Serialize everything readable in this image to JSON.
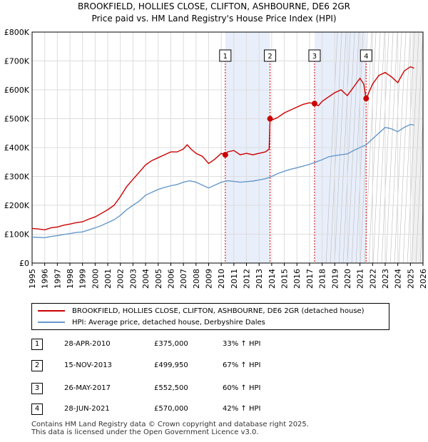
{
  "title_line1": "BROOKFIELD, HOLLIES CLOSE, CLIFTON, ASHBOURNE, DE6 2GR",
  "title_line2": "Price paid vs. HM Land Registry's House Price Index (HPI)",
  "colors": {
    "property": "#cc0000",
    "hpi": "#6699cc",
    "shade": "#e8eefa",
    "grid": "#dddddd"
  },
  "legend": {
    "property": "BROOKFIELD, HOLLIES CLOSE, CLIFTON, ASHBOURNE, DE6 2GR (detached house)",
    "hpi": "HPI: Average price, detached house, Derbyshire Dales"
  },
  "sales": [
    {
      "num": "1",
      "date": "28-APR-2010",
      "price": "£375,000",
      "hpi": "33% ↑ HPI"
    },
    {
      "num": "2",
      "date": "15-NOV-2013",
      "price": "£499,950",
      "hpi": "67% ↑ HPI"
    },
    {
      "num": "3",
      "date": "26-MAY-2017",
      "price": "£552,500",
      "hpi": "60% ↑ HPI"
    },
    {
      "num": "4",
      "date": "28-JUN-2021",
      "price": "£570,000",
      "hpi": "42% ↑ HPI"
    }
  ],
  "footer": {
    "line1": "Contains HM Land Registry data © Crown copyright and database right 2025.",
    "line2": "This data is licensed under the Open Government Licence v3.0."
  },
  "chart_data": {
    "type": "line",
    "xlabel": "",
    "ylabel": "",
    "xlim": [
      1995,
      2026
    ],
    "ylim": [
      0,
      800000
    ],
    "x_ticks": [
      "1995",
      "1996",
      "1997",
      "1998",
      "1999",
      "2000",
      "2001",
      "2002",
      "2003",
      "2004",
      "2005",
      "2006",
      "2007",
      "2008",
      "2009",
      "2010",
      "2011",
      "2012",
      "2013",
      "2014",
      "2015",
      "2016",
      "2017",
      "2018",
      "2019",
      "2020",
      "2021",
      "2022",
      "2023",
      "2024",
      "2025",
      "2026"
    ],
    "y_ticks": [
      "£0",
      "£100K",
      "£200K",
      "£300K",
      "£400K",
      "£500K",
      "£600K",
      "£700K",
      "£800K"
    ],
    "grid": true,
    "legend_position": "below",
    "shaded_periods": [
      [
        2010.32,
        2013.87
      ],
      [
        2017.4,
        2021.49
      ]
    ],
    "forecast_start": 2025.1,
    "sale_points": [
      {
        "label": "1",
        "x": 2010.32,
        "y": 375000
      },
      {
        "label": "2",
        "x": 2013.87,
        "y": 499950
      },
      {
        "label": "3",
        "x": 2017.4,
        "y": 552500
      },
      {
        "label": "4",
        "x": 2021.49,
        "y": 570000
      }
    ],
    "series": [
      {
        "name": "BROOKFIELD, HOLLIES CLOSE, CLIFTON, ASHBOURNE, DE6 2GR (detached house)",
        "color": "#cc0000",
        "points": [
          [
            1995,
            120000
          ],
          [
            1995.5,
            118000
          ],
          [
            1996,
            115000
          ],
          [
            1996.5,
            122000
          ],
          [
            1997,
            125000
          ],
          [
            1997.5,
            131000
          ],
          [
            1998,
            135000
          ],
          [
            1998.5,
            140000
          ],
          [
            1999,
            143000
          ],
          [
            1999.5,
            152000
          ],
          [
            2000,
            160000
          ],
          [
            2000.5,
            172000
          ],
          [
            2001,
            185000
          ],
          [
            2001.5,
            200000
          ],
          [
            2002,
            230000
          ],
          [
            2002.5,
            265000
          ],
          [
            2003,
            290000
          ],
          [
            2003.5,
            315000
          ],
          [
            2004,
            340000
          ],
          [
            2004.5,
            355000
          ],
          [
            2005,
            365000
          ],
          [
            2005.5,
            375000
          ],
          [
            2006,
            385000
          ],
          [
            2006.5,
            385000
          ],
          [
            2007,
            395000
          ],
          [
            2007.3,
            410000
          ],
          [
            2007.6,
            395000
          ],
          [
            2008,
            380000
          ],
          [
            2008.5,
            370000
          ],
          [
            2009,
            345000
          ],
          [
            2009.5,
            360000
          ],
          [
            2010,
            380000
          ],
          [
            2010.32,
            375000
          ],
          [
            2010.5,
            385000
          ],
          [
            2011,
            390000
          ],
          [
            2011.5,
            375000
          ],
          [
            2012,
            380000
          ],
          [
            2012.5,
            375000
          ],
          [
            2013,
            380000
          ],
          [
            2013.5,
            385000
          ],
          [
            2013.8,
            395000
          ],
          [
            2013.87,
            499950
          ],
          [
            2014,
            495000
          ],
          [
            2014.5,
            505000
          ],
          [
            2015,
            520000
          ],
          [
            2015.5,
            530000
          ],
          [
            2016,
            540000
          ],
          [
            2016.5,
            550000
          ],
          [
            2017,
            555000
          ],
          [
            2017.4,
            552500
          ],
          [
            2017.7,
            545000
          ],
          [
            2018,
            560000
          ],
          [
            2018.5,
            575000
          ],
          [
            2019,
            590000
          ],
          [
            2019.5,
            600000
          ],
          [
            2020,
            580000
          ],
          [
            2020.5,
            610000
          ],
          [
            2021,
            640000
          ],
          [
            2021.3,
            620000
          ],
          [
            2021.49,
            570000
          ],
          [
            2021.7,
            590000
          ],
          [
            2022,
            620000
          ],
          [
            2022.5,
            650000
          ],
          [
            2023,
            660000
          ],
          [
            2023.5,
            645000
          ],
          [
            2024,
            625000
          ],
          [
            2024.5,
            665000
          ],
          [
            2025,
            680000
          ],
          [
            2025.3,
            675000
          ]
        ]
      },
      {
        "name": "HPI: Average price, detached house, Derbyshire Dales",
        "color": "#6699cc",
        "points": [
          [
            1995,
            90000
          ],
          [
            1995.5,
            89000
          ],
          [
            1996,
            88000
          ],
          [
            1996.5,
            92000
          ],
          [
            1997,
            95000
          ],
          [
            1997.5,
            99000
          ],
          [
            1998,
            102000
          ],
          [
            1998.5,
            106000
          ],
          [
            1999,
            108000
          ],
          [
            1999.5,
            115000
          ],
          [
            2000,
            122000
          ],
          [
            2000.5,
            130000
          ],
          [
            2001,
            140000
          ],
          [
            2001.5,
            150000
          ],
          [
            2002,
            165000
          ],
          [
            2002.5,
            185000
          ],
          [
            2003,
            200000
          ],
          [
            2003.5,
            215000
          ],
          [
            2004,
            235000
          ],
          [
            2004.5,
            245000
          ],
          [
            2005,
            255000
          ],
          [
            2005.5,
            262000
          ],
          [
            2006,
            268000
          ],
          [
            2006.5,
            272000
          ],
          [
            2007,
            280000
          ],
          [
            2007.5,
            285000
          ],
          [
            2008,
            280000
          ],
          [
            2008.5,
            270000
          ],
          [
            2009,
            260000
          ],
          [
            2009.5,
            270000
          ],
          [
            2010,
            280000
          ],
          [
            2010.5,
            285000
          ],
          [
            2011,
            283000
          ],
          [
            2011.5,
            280000
          ],
          [
            2012,
            282000
          ],
          [
            2012.5,
            284000
          ],
          [
            2013,
            288000
          ],
          [
            2013.5,
            292000
          ],
          [
            2014,
            300000
          ],
          [
            2014.5,
            310000
          ],
          [
            2015,
            318000
          ],
          [
            2015.5,
            325000
          ],
          [
            2016,
            330000
          ],
          [
            2016.5,
            336000
          ],
          [
            2017,
            342000
          ],
          [
            2017.5,
            350000
          ],
          [
            2018,
            358000
          ],
          [
            2018.5,
            368000
          ],
          [
            2019,
            372000
          ],
          [
            2019.5,
            375000
          ],
          [
            2020,
            378000
          ],
          [
            2020.5,
            390000
          ],
          [
            2021,
            400000
          ],
          [
            2021.5,
            410000
          ],
          [
            2022,
            430000
          ],
          [
            2022.5,
            450000
          ],
          [
            2023,
            470000
          ],
          [
            2023.5,
            465000
          ],
          [
            2024,
            455000
          ],
          [
            2024.5,
            470000
          ],
          [
            2025,
            480000
          ],
          [
            2025.3,
            478000
          ]
        ]
      }
    ]
  }
}
